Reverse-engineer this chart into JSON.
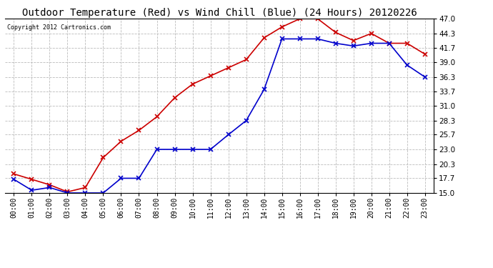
{
  "title": "Outdoor Temperature (Red) vs Wind Chill (Blue) (24 Hours) 20120226",
  "copyright": "Copyright 2012 Cartronics.com",
  "hours": [
    "00:00",
    "01:00",
    "02:00",
    "03:00",
    "04:00",
    "05:00",
    "06:00",
    "07:00",
    "08:00",
    "09:00",
    "10:00",
    "11:00",
    "12:00",
    "13:00",
    "14:00",
    "15:00",
    "16:00",
    "17:00",
    "18:00",
    "19:00",
    "20:00",
    "21:00",
    "22:00",
    "23:00"
  ],
  "temp_red": [
    18.5,
    17.5,
    16.5,
    15.2,
    16.0,
    21.5,
    24.5,
    26.5,
    29.0,
    32.5,
    35.0,
    36.5,
    38.0,
    39.5,
    43.5,
    45.5,
    47.0,
    47.0,
    44.5,
    43.0,
    44.3,
    42.5,
    42.5,
    40.5
  ],
  "wind_chill_blue": [
    17.5,
    15.5,
    16.0,
    15.0,
    15.0,
    15.0,
    17.7,
    17.7,
    23.0,
    23.0,
    23.0,
    23.0,
    25.7,
    28.3,
    34.0,
    43.3,
    43.3,
    43.3,
    42.5,
    42.0,
    42.5,
    42.5,
    38.5,
    36.3
  ],
  "ylim": [
    15.0,
    47.0
  ],
  "yticks": [
    15.0,
    17.7,
    20.3,
    23.0,
    25.7,
    28.3,
    31.0,
    33.7,
    36.3,
    39.0,
    41.7,
    44.3,
    47.0
  ],
  "bg_color": "#ffffff",
  "plot_bg": "#ffffff",
  "grid_color": "#bbbbbb",
  "red_color": "#cc0000",
  "blue_color": "#0000cc",
  "title_fontsize": 10,
  "copyright_fontsize": 6,
  "tick_fontsize": 7,
  "ytick_fontsize": 7.5
}
